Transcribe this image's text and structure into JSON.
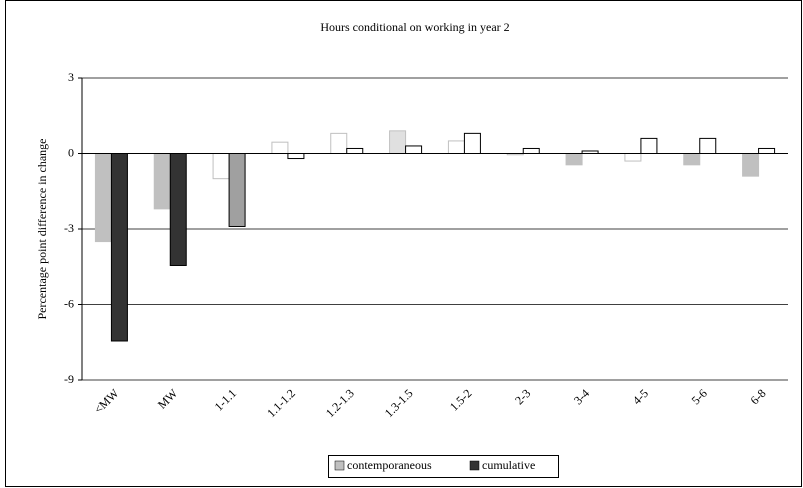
{
  "chart_data": {
    "type": "bar",
    "title": "Hours conditional on working in year 2",
    "y_label": "Percentage point difference in change",
    "categories": [
      "<MW",
      "MW",
      "1-1.1",
      "1.1-1.2",
      "1.2-1.3",
      "1.3-1.5",
      "1.5-2",
      "2-3",
      "3-4",
      "4-5",
      "5-6",
      "6-8"
    ],
    "series": [
      {
        "name": "contemporaneous",
        "color": "#c0c0c0",
        "stroke": "#c0c0c0",
        "fills": [
          "#c0c0c0",
          "#c0c0c0",
          "#ffffff",
          "#ffffff",
          "#ffffff",
          "#e0e0e0",
          "#ffffff",
          "#ffffff",
          "#c0c0c0",
          "#ffffff",
          "#c0c0c0",
          "#c0c0c0"
        ],
        "values": [
          -3.5,
          -2.2,
          -1.0,
          0.45,
          0.8,
          0.9,
          0.5,
          -0.05,
          -0.45,
          -0.3,
          -0.45,
          -0.9
        ]
      },
      {
        "name": "cumulative",
        "color": "#333333",
        "stroke": "#000000",
        "fills": [
          "#333333",
          "#333333",
          "#a0a0a0",
          "#ffffff",
          "#ffffff",
          "#ffffff",
          "#ffffff",
          "#ffffff",
          "#ffffff",
          "#ffffff",
          "#ffffff",
          "#ffffff"
        ],
        "values": [
          -7.45,
          -4.45,
          -2.9,
          -0.2,
          0.2,
          0.3,
          0.8,
          0.2,
          0.1,
          0.6,
          0.6,
          0.2
        ]
      }
    ],
    "ylim": [
      -9,
      3
    ],
    "yticks": [
      3,
      0,
      -3,
      -6,
      -9
    ],
    "grid": true,
    "legend": "bottom"
  }
}
